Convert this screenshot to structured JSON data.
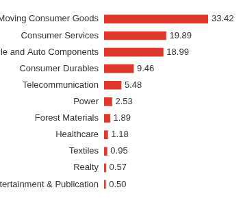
{
  "chart_data": {
    "type": "bar",
    "orientation": "horizontal",
    "categories": [
      "Fast Moving Consumer Goods",
      "Consumer Services",
      "Automobile and Auto Components",
      "Consumer Durables",
      "Telecommunication",
      "Power",
      "Forest Materials",
      "Healthcare",
      "Textiles",
      "Realty",
      "Media, Entertainment & Publication"
    ],
    "values": [
      33.42,
      19.89,
      18.99,
      9.46,
      5.48,
      2.53,
      1.89,
      1.18,
      0.95,
      0.57,
      0.5
    ],
    "value_labels": [
      "33.42",
      "19.89",
      "18.99",
      "9.46",
      "5.48",
      "2.53",
      "1.89",
      "1.18",
      "0.95",
      "0.57",
      "0.50"
    ],
    "color": "#e0382c",
    "xlim": [
      0,
      33.42
    ],
    "grid": false,
    "data_labels": true,
    "tick_labels": "y"
  }
}
